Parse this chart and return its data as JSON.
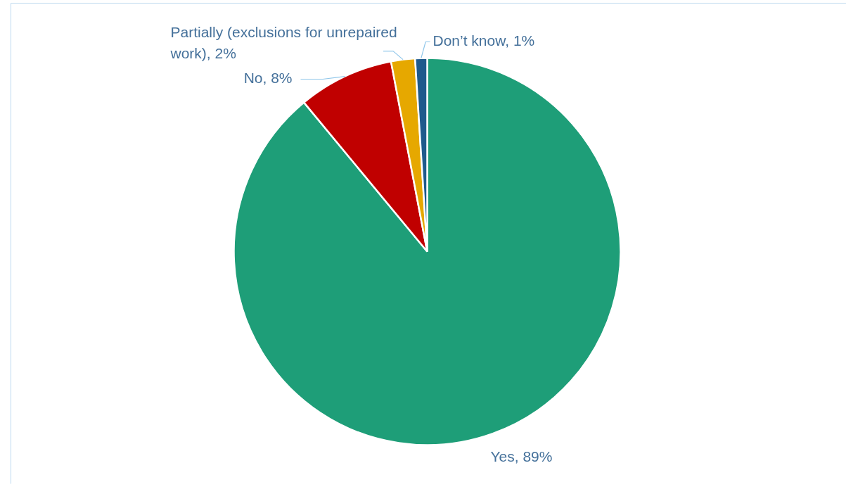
{
  "chart_data": {
    "type": "pie",
    "categories": [
      "Yes",
      "No",
      "Partially (exclusions for unrepaired work)",
      "Don’t know"
    ],
    "values": [
      89,
      8,
      2,
      1
    ],
    "colors": [
      "#1e9e78",
      "#c00000",
      "#e6a800",
      "#1f5a8c"
    ],
    "value_labels": [
      "89%",
      "8%",
      "2%",
      "1%"
    ]
  }
}
